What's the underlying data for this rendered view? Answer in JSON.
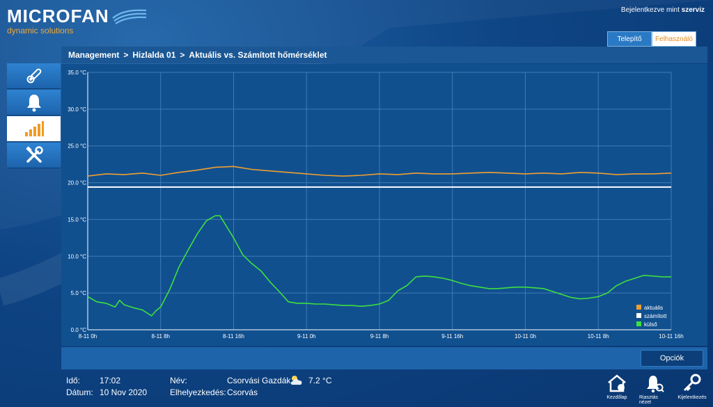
{
  "header": {
    "logo_text": "MICROFAN",
    "logo_sub": "dynamic solutions",
    "login_prefix": "Bejelentkezve mint",
    "login_user": "szerviz"
  },
  "role_tabs": [
    "Telepítő",
    "Felhasználó"
  ],
  "breadcrumb": [
    "Management",
    ">",
    "Hizlalda 01",
    ">",
    "Aktuális vs. Számított hőmérséklet"
  ],
  "nav": {
    "items": [
      {
        "icon": "thermometer-icon"
      },
      {
        "icon": "bell-icon"
      },
      {
        "icon": "bar-chart-icon"
      },
      {
        "icon": "tools-icon"
      }
    ],
    "active_index": 2
  },
  "options_button": "Opciók",
  "footer": {
    "time_label": "Idő:",
    "time_value": "17:02",
    "date_label": "Dátum:",
    "date_value": "10 Nov 2020",
    "name_label": "Név:",
    "name_value": "Csorvási Gazdák",
    "location_label": "Elhelyezkedés:",
    "location_value": "Csorvás",
    "weather_icon": "partly-cloudy-icon",
    "outside_temp": "7.2 °C",
    "actions": [
      {
        "label": "Kezdőlap",
        "icon": "home-alarm-icon"
      },
      {
        "label": "Riasztás nézet",
        "icon": "alarm-bell-icon"
      },
      {
        "label": "Kijelentkezés",
        "icon": "key-icon"
      }
    ]
  },
  "colors": {
    "actual": "#f0a030",
    "calculated": "#ffffff",
    "outside": "#3ee03e",
    "plot_bg": "#11508f",
    "grid": "#3f7bb5"
  },
  "chart_data": {
    "type": "line",
    "y_tick_labels": [
      "0.0 °C",
      "5.0 °C",
      "10.0 °C",
      "15.0 °C",
      "20.0 °C",
      "25.0 °C",
      "30.0 °C",
      "35.0 °C"
    ],
    "ylim": [
      0,
      35
    ],
    "x_tick_labels": [
      "8-11 0h",
      "8-11 8h",
      "8-11 16h",
      "9-11 0h",
      "9-11 8h",
      "9-11 16h",
      "10-11 0h",
      "10-11 8h",
      "10-11 16h"
    ],
    "x_unit": "hour",
    "xlim": [
      0,
      64
    ],
    "legend_position": "bottom-right",
    "grid": true,
    "series": [
      {
        "name": "aktuális",
        "color": "#f0a030",
        "x": [
          0,
          2,
          4,
          6,
          8,
          10,
          12,
          14,
          16,
          18,
          20,
          22,
          24,
          26,
          28,
          30,
          32,
          34,
          36,
          38,
          40,
          42,
          44,
          46,
          48,
          50,
          52,
          54,
          56,
          58,
          60,
          62,
          64
        ],
        "values": [
          20.9,
          21.2,
          21.1,
          21.3,
          21.0,
          21.4,
          21.7,
          22.1,
          22.2,
          21.8,
          21.6,
          21.4,
          21.2,
          21.0,
          20.9,
          21.0,
          21.2,
          21.1,
          21.3,
          21.2,
          21.2,
          21.3,
          21.4,
          21.3,
          21.2,
          21.3,
          21.2,
          21.4,
          21.3,
          21.1,
          21.2,
          21.2,
          21.3
        ]
      },
      {
        "name": "számított",
        "color": "#ffffff",
        "x": [
          0,
          64
        ],
        "values": [
          19.4,
          19.4
        ]
      },
      {
        "name": "külső",
        "color": "#3ee03e",
        "x": [
          0,
          1,
          2,
          3,
          3.5,
          4,
          5,
          6,
          7,
          7.5,
          8,
          9,
          10,
          11,
          12,
          13,
          14,
          14.5,
          15,
          16,
          17,
          18,
          19,
          20,
          21,
          22,
          23,
          24,
          25,
          26,
          27,
          28,
          29,
          30,
          31,
          32,
          33,
          34,
          35,
          36,
          37,
          38,
          39,
          40,
          41,
          42,
          43,
          44,
          45,
          46,
          47,
          48,
          49,
          50,
          51,
          52,
          53,
          54,
          55,
          56,
          57,
          58,
          59,
          60,
          61,
          62,
          63,
          64
        ],
        "values": [
          4.5,
          3.8,
          3.6,
          3.1,
          4.0,
          3.4,
          3.0,
          2.7,
          1.9,
          2.6,
          3.1,
          5.5,
          8.5,
          10.8,
          13.0,
          14.8,
          15.5,
          15.5,
          14.5,
          12.5,
          10.2,
          9.0,
          8.0,
          6.5,
          5.2,
          3.8,
          3.6,
          3.6,
          3.5,
          3.5,
          3.4,
          3.3,
          3.3,
          3.2,
          3.3,
          3.5,
          4.0,
          5.3,
          6.0,
          7.2,
          7.3,
          7.2,
          7.0,
          6.7,
          6.3,
          6.0,
          5.8,
          5.6,
          5.6,
          5.7,
          5.8,
          5.8,
          5.7,
          5.6,
          5.2,
          4.8,
          4.4,
          4.2,
          4.3,
          4.5,
          5.0,
          6.0,
          6.6,
          7.0,
          7.4,
          7.3,
          7.2,
          7.2
        ]
      }
    ]
  }
}
